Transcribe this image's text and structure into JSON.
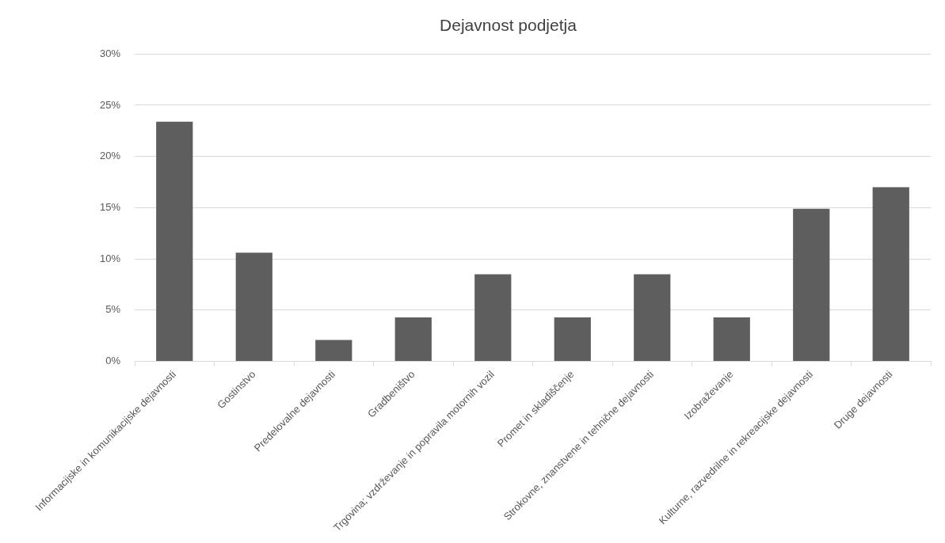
{
  "chart_data": {
    "type": "bar",
    "title": "Dejavnost podjetja",
    "categories": [
      "Informacijske in komunikacijske dejavnosti",
      "Gostinstvo",
      "Predelovalne dejavnosti",
      "Gradbeništvo",
      "Trgovina; vzdrževanje in popravila motornih vozil",
      "Promet in skladiščenje",
      "Strokovne, znanstvene in tehnične dejavnosti",
      "Izobraževanje",
      "Kulturne, razvedrilne in rekreacijske dejavnosti",
      "Druge dejavnosti"
    ],
    "values": [
      23.4,
      10.6,
      2.1,
      4.3,
      8.5,
      4.3,
      8.5,
      4.3,
      14.9,
      17.0
    ],
    "color": "#5e5e5e",
    "ylim": [
      0,
      30
    ],
    "yticks": [
      {
        "value": 0,
        "label": "0%"
      },
      {
        "value": 5,
        "label": "5%"
      },
      {
        "value": 10,
        "label": "10%"
      },
      {
        "value": 15,
        "label": "15%"
      },
      {
        "value": 20,
        "label": "20%"
      },
      {
        "value": 25,
        "label": "25%"
      },
      {
        "value": 30,
        "label": "30%"
      }
    ],
    "grid": "y",
    "legend": false
  }
}
